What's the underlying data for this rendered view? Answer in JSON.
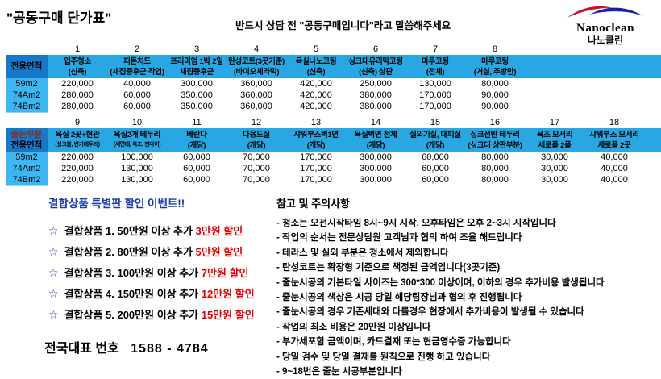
{
  "header": {
    "title": "\"공동구매 단가표\"",
    "notice": "반드시 상담 전 \"공동구매입니다\"라고 말씀해주세요",
    "logo": {
      "name": "Nanoclean",
      "korean": "나노클린",
      "swoosh_red": "#c8102e",
      "swoosh_blue": "#1b1fa8"
    }
  },
  "table1": {
    "corner_lines": [
      "전용면적"
    ],
    "columns": [
      {
        "num": "1",
        "title": "입주청소",
        "sub": "(신축)"
      },
      {
        "num": "2",
        "title": "피톤치드",
        "sub": "(새집증후군 작업)"
      },
      {
        "num": "3",
        "title": "프리미엄 1박 2일",
        "sub": "새집증후군"
      },
      {
        "num": "4",
        "title": "탄성코트(3곳기준)",
        "sub": "(바이오세라믹)"
      },
      {
        "num": "5",
        "title": "욕실나노코팅",
        "sub": "(신축)"
      },
      {
        "num": "6",
        "title": "싱크대유리막코팅",
        "sub": "(신축) 상판"
      },
      {
        "num": "7",
        "title": "마루코팅",
        "sub": "(전체)"
      },
      {
        "num": "8",
        "title": "마루코팅",
        "sub": "(거실, 주방만)"
      }
    ],
    "rows": [
      {
        "label": "59m2",
        "values": [
          "220,000",
          "40,000",
          "300,000",
          "360,000",
          "420,000",
          "250,000",
          "130,000",
          "80,000"
        ]
      },
      {
        "label": "74Am2",
        "values": [
          "280,000",
          "60,000",
          "350,000",
          "360,000",
          "420,000",
          "380,000",
          "170,000",
          "90,000"
        ]
      },
      {
        "label": "74Bm2",
        "values": [
          "280,000",
          "60,000",
          "350,000",
          "360,000",
          "420,000",
          "380,000",
          "170,000",
          "90,000"
        ]
      }
    ]
  },
  "table2": {
    "corner_lines": [
      "줄눈부분",
      "전용면적"
    ],
    "columns": [
      {
        "num": "9",
        "title": "욕실 2곳+현관",
        "sub": "(싱크볼, 변기테두리)"
      },
      {
        "num": "10",
        "title": "욕실2개 테두리",
        "sub": "(세면대, 욕조, 젠다이)"
      },
      {
        "num": "11",
        "title": "베란다",
        "sub": "(개당)"
      },
      {
        "num": "12",
        "title": "다용도실",
        "sub": "(개당)"
      },
      {
        "num": "13",
        "title": "샤워부스벽1면",
        "sub": "(개당)"
      },
      {
        "num": "14",
        "title": "욕실벽면 전체",
        "sub": "(개당)"
      },
      {
        "num": "15",
        "title": "실외기실, 대피실",
        "sub": "(개당)"
      },
      {
        "num": "16",
        "title": "싱크선반 테두리",
        "sub": "(싱크대 상판부분)"
      },
      {
        "num": "17",
        "title": "욕조 모서리",
        "sub": "세로폴 2폴"
      },
      {
        "num": "18",
        "title": "샤워부스 모서리",
        "sub": "세로폴 2곳"
      }
    ],
    "rows": [
      {
        "label": "59m2",
        "values": [
          "220,000",
          "100,000",
          "60,000",
          "70,000",
          "170,000",
          "300,000",
          "60,000",
          "80,000",
          "30,000",
          "40,000"
        ]
      },
      {
        "label": "74Am2",
        "values": [
          "220,000",
          "130,000",
          "60,000",
          "70,000",
          "170,000",
          "300,000",
          "60,000",
          "80,000",
          "30,000",
          "40,000"
        ]
      },
      {
        "label": "74Bm2",
        "values": [
          "220,000",
          "130,000",
          "60,000",
          "70,000",
          "170,000",
          "300,000",
          "60,000",
          "80,000",
          "30,000",
          "40,000"
        ]
      }
    ]
  },
  "promo": {
    "title": "결합상품 특별판 할인 이벤트!!",
    "items": [
      {
        "star": "☆",
        "text": "결합상품 1.  50만원 이상 추가 ",
        "highlight": "3만원 할인"
      },
      {
        "star": "☆",
        "text": "결합상품 2.  80만원 이상 추가 ",
        "highlight": "5만원 할인"
      },
      {
        "star": "☆",
        "text": "결합상품 3.  100만원 이상 추가 ",
        "highlight": "7만원 할인"
      },
      {
        "star": "☆",
        "text": "결합상품 4.  150만원 이상 추가 ",
        "highlight": "12만원 할인"
      },
      {
        "star": "☆",
        "text": "결합상품 5.  200만원 이상 추가 ",
        "highlight": "15만원 할인"
      }
    ]
  },
  "notes": {
    "title": "참고 및 주의사항",
    "items": [
      "- 청소는 오전시작타임 8시~9시 시작, 오후타임은 오후 2~3시 시작입니다",
      "- 작업의 순서는 전문상담원 고객님과 협의 하여 조율 해드립니다",
      "- 테라스 및 실외 부분은 청소에서 제외합니다",
      "- 탄성코트는 확장형 기준으로 책정된 금액입니다(3곳기준)",
      "- 줄눈시공의 기본타일 사이즈는 300*300 이상이며, 이하의 경우 추가비용 발생됩니다",
      "- 줄눈시공의 색상은 시공 당일 해당팀장님과 협의 후 진행됩니다",
      "- 줄눈시공의 경우 기존세대와 다를경우 현장에서 추가비용이 발생될 수 있습니다",
      "- 작업의 최소 비용은 20만원 이상입니다",
      "- 부가세포함 금액이며, 카드결재 또는 현금영수증 가능합니다",
      "- 당일 검수 및 당일 결재를 원칙으로 진행 하고 있습니다",
      "- 9~18번은 줄눈 시공부분입니다"
    ]
  },
  "footer": {
    "phone_label": "전국대표 번호",
    "phone_number": "1588 - 4784"
  }
}
